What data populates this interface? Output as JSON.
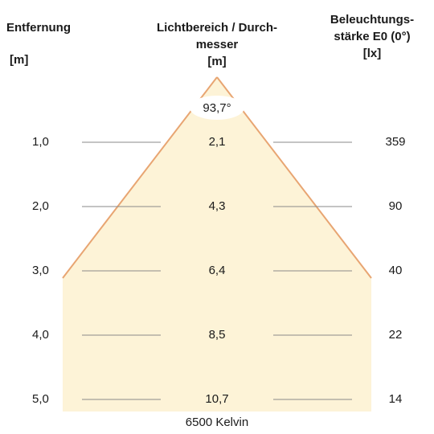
{
  "headers": {
    "distance": {
      "title": "Entfernung",
      "unit": "[m]"
    },
    "diameter": {
      "title_line1": "Lichtbereich / Durch-",
      "title_line2": "messer",
      "unit": "[m]"
    },
    "illuminance": {
      "title_line1": "Beleuchtungs-",
      "title_line2": "stärke E0 (0°)",
      "unit": "[lx]"
    }
  },
  "beam_angle": "93,7°",
  "rows": [
    {
      "distance": "1,0",
      "diameter": "2,1",
      "illuminance": "359"
    },
    {
      "distance": "2,0",
      "diameter": "4,3",
      "illuminance": "90"
    },
    {
      "distance": "3,0",
      "diameter": "6,4",
      "illuminance": "40"
    },
    {
      "distance": "4,0",
      "diameter": "8,5",
      "illuminance": "22"
    },
    {
      "distance": "5,0",
      "diameter": "10,7",
      "illuminance": "14"
    }
  ],
  "color_temperature": "6500 Kelvin",
  "colors": {
    "fill": "#fdf3d7",
    "cone_edge": "#e8a572",
    "row_line": "#8a8a8a"
  }
}
